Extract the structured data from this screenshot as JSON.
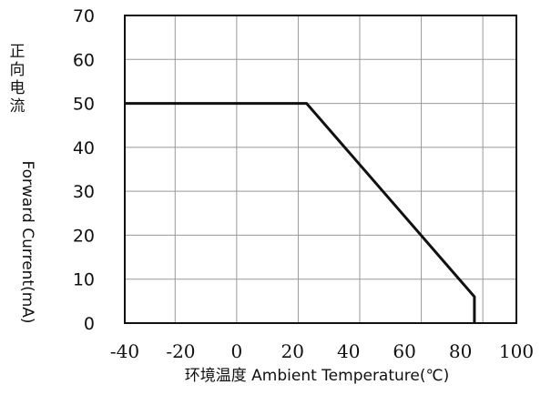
{
  "chart_data": {
    "type": "line",
    "title": "",
    "xlabel": "环境温度 Ambient Temperature(℃)",
    "ylabel_cn": "正向电流",
    "ylabel_en": "Forward Current(mA)",
    "xlim": [
      -40,
      100
    ],
    "ylim": [
      0,
      70
    ],
    "x_ticks": [
      "-40",
      "-20",
      "0",
      "20",
      "40",
      "60",
      "80",
      "100"
    ],
    "x_tick_values": [
      -40,
      -20,
      0,
      20,
      40,
      60,
      80,
      100
    ],
    "y_ticks": [
      "70",
      "60",
      "50",
      "40",
      "30",
      "20",
      "10",
      "0"
    ],
    "y_tick_values": [
      70,
      60,
      50,
      40,
      30,
      20,
      10,
      0
    ],
    "x_grid_values": [
      -22,
      0,
      22,
      44,
      66,
      88
    ],
    "grid": true,
    "series": [
      {
        "x": [
          -40,
          25,
          85,
          85
        ],
        "y": [
          50,
          50,
          6,
          0
        ]
      }
    ],
    "colors": {
      "line": "#111111",
      "grid": "#999999",
      "frame": "#111111"
    }
  }
}
